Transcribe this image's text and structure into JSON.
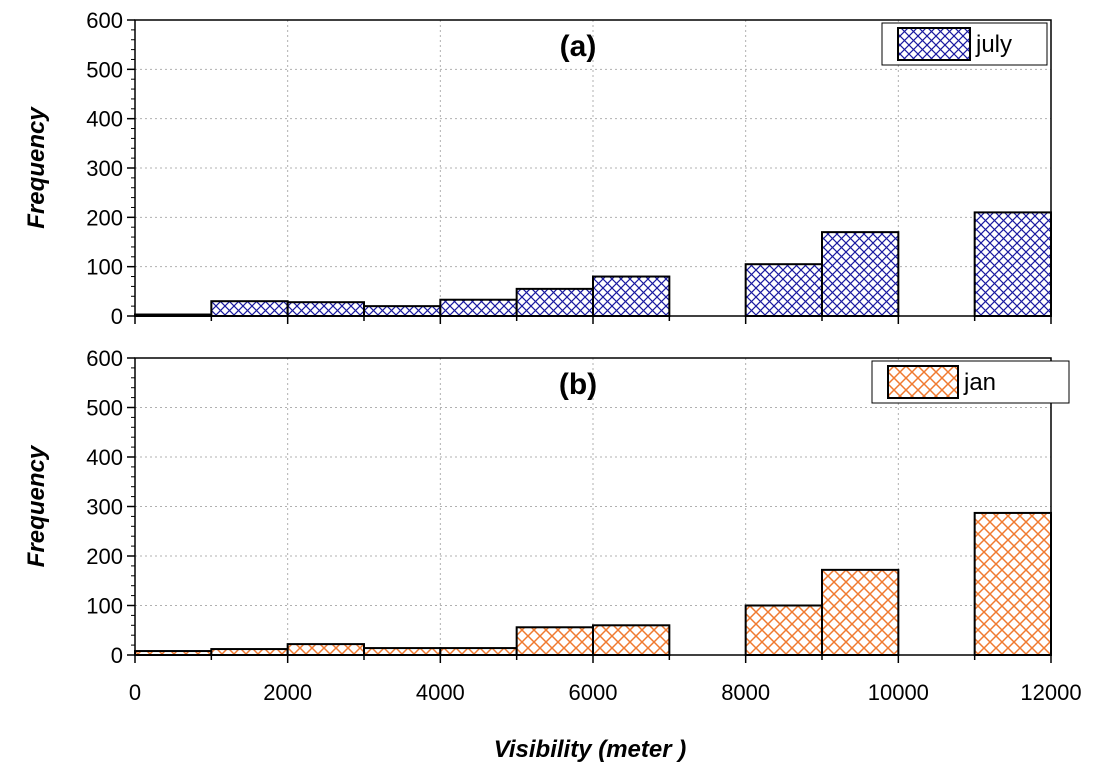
{
  "chart_data": [
    {
      "type": "bar",
      "panel_label": "(a)",
      "ylabel": "Frequency",
      "xlabel": "",
      "ylim": [
        0,
        600
      ],
      "xlim": [
        0,
        12000
      ],
      "bin_width": 1000,
      "grid": true,
      "legend_position": "top-right",
      "series": [
        {
          "name": "july",
          "color": "#1a1aa0",
          "pattern": "crosshatch",
          "bins": [
            {
              "x0": 0,
              "x1": 1000,
              "value": 3
            },
            {
              "x0": 1000,
              "x1": 2000,
              "value": 30
            },
            {
              "x0": 2000,
              "x1": 3000,
              "value": 28
            },
            {
              "x0": 3000,
              "x1": 4000,
              "value": 20
            },
            {
              "x0": 4000,
              "x1": 5000,
              "value": 33
            },
            {
              "x0": 5000,
              "x1": 6000,
              "value": 55
            },
            {
              "x0": 6000,
              "x1": 7000,
              "value": 80
            },
            {
              "x0": 8000,
              "x1": 9000,
              "value": 105
            },
            {
              "x0": 9000,
              "x1": 10000,
              "value": 170
            },
            {
              "x0": 11000,
              "x1": 12000,
              "value": 210
            }
          ]
        }
      ],
      "yticks": [
        0,
        100,
        200,
        300,
        400,
        500,
        600
      ]
    },
    {
      "type": "bar",
      "panel_label": "(b)",
      "ylabel": "Frequency",
      "xlabel": "Visibility (meter )",
      "ylim": [
        0,
        600
      ],
      "xlim": [
        0,
        12000
      ],
      "bin_width": 1000,
      "grid": true,
      "legend_position": "top-right",
      "series": [
        {
          "name": "jan",
          "color": "#f07a30",
          "pattern": "crosshatch",
          "bins": [
            {
              "x0": 0,
              "x1": 1000,
              "value": 8
            },
            {
              "x0": 1000,
              "x1": 2000,
              "value": 12
            },
            {
              "x0": 2000,
              "x1": 3000,
              "value": 22
            },
            {
              "x0": 3000,
              "x1": 4000,
              "value": 14
            },
            {
              "x0": 4000,
              "x1": 5000,
              "value": 14
            },
            {
              "x0": 5000,
              "x1": 6000,
              "value": 56
            },
            {
              "x0": 6000,
              "x1": 7000,
              "value": 60
            },
            {
              "x0": 8000,
              "x1": 9000,
              "value": 100
            },
            {
              "x0": 9000,
              "x1": 10000,
              "value": 172
            },
            {
              "x0": 11000,
              "x1": 12000,
              "value": 287
            }
          ]
        }
      ],
      "yticks": [
        0,
        100,
        200,
        300,
        400,
        500,
        600
      ],
      "xticks": [
        0,
        2000,
        4000,
        6000,
        8000,
        10000,
        12000
      ]
    }
  ]
}
